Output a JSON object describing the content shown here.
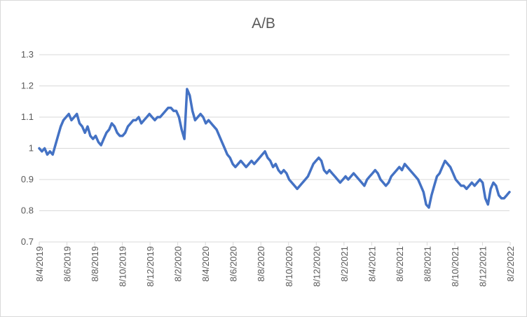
{
  "chart_data": {
    "type": "line",
    "title": "A/B",
    "xlabel": "",
    "ylabel": "",
    "ylim": [
      0.7,
      1.3
    ],
    "yticks": [
      "0.7",
      "0.8",
      "0.9",
      "1",
      "1.1",
      "1.2",
      "1.3"
    ],
    "xticks": [
      "8/4/2019",
      "8/6/2019",
      "8/8/2019",
      "8/10/2019",
      "8/12/2019",
      "8/2/2020",
      "8/4/2020",
      "8/6/2020",
      "8/8/2020",
      "8/10/2020",
      "8/12/2020",
      "8/2/2021",
      "8/4/2021",
      "8/6/2021",
      "8/8/2021",
      "8/10/2021",
      "8/12/2021",
      "8/2/2022"
    ],
    "grid": "horizontal",
    "legend": "none",
    "series_color": "#4472c4",
    "series": [
      {
        "points": [
          [
            0,
            1.0
          ],
          [
            1,
            0.99
          ],
          [
            2,
            1.0
          ],
          [
            3,
            0.98
          ],
          [
            4,
            0.99
          ],
          [
            5,
            0.98
          ],
          [
            6,
            1.01
          ],
          [
            7,
            1.04
          ],
          [
            8,
            1.07
          ],
          [
            9,
            1.09
          ],
          [
            10,
            1.1
          ],
          [
            11,
            1.11
          ],
          [
            12,
            1.09
          ],
          [
            13,
            1.1
          ],
          [
            14,
            1.11
          ],
          [
            15,
            1.08
          ],
          [
            16,
            1.07
          ],
          [
            17,
            1.05
          ],
          [
            18,
            1.07
          ],
          [
            19,
            1.04
          ],
          [
            20,
            1.03
          ],
          [
            21,
            1.04
          ],
          [
            22,
            1.02
          ],
          [
            23,
            1.01
          ],
          [
            24,
            1.03
          ],
          [
            25,
            1.05
          ],
          [
            26,
            1.06
          ],
          [
            27,
            1.08
          ],
          [
            28,
            1.07
          ],
          [
            29,
            1.05
          ],
          [
            30,
            1.04
          ],
          [
            31,
            1.04
          ],
          [
            32,
            1.05
          ],
          [
            33,
            1.07
          ],
          [
            34,
            1.08
          ],
          [
            35,
            1.09
          ],
          [
            36,
            1.09
          ],
          [
            37,
            1.1
          ],
          [
            38,
            1.08
          ],
          [
            39,
            1.09
          ],
          [
            40,
            1.1
          ],
          [
            41,
            1.11
          ],
          [
            42,
            1.1
          ],
          [
            43,
            1.09
          ],
          [
            44,
            1.1
          ],
          [
            45,
            1.1
          ],
          [
            46,
            1.11
          ],
          [
            47,
            1.12
          ],
          [
            48,
            1.13
          ],
          [
            49,
            1.13
          ],
          [
            50,
            1.12
          ],
          [
            51,
            1.12
          ],
          [
            52,
            1.1
          ],
          [
            53,
            1.06
          ],
          [
            54,
            1.03
          ],
          [
            55,
            1.19
          ],
          [
            56,
            1.17
          ],
          [
            57,
            1.12
          ],
          [
            58,
            1.09
          ],
          [
            59,
            1.1
          ],
          [
            60,
            1.11
          ],
          [
            61,
            1.1
          ],
          [
            62,
            1.08
          ],
          [
            63,
            1.09
          ],
          [
            64,
            1.08
          ],
          [
            65,
            1.07
          ],
          [
            66,
            1.06
          ],
          [
            67,
            1.04
          ],
          [
            68,
            1.02
          ],
          [
            69,
            1.0
          ],
          [
            70,
            0.98
          ],
          [
            71,
            0.97
          ],
          [
            72,
            0.95
          ],
          [
            73,
            0.94
          ],
          [
            74,
            0.95
          ],
          [
            75,
            0.96
          ],
          [
            76,
            0.95
          ],
          [
            77,
            0.94
          ],
          [
            78,
            0.95
          ],
          [
            79,
            0.96
          ],
          [
            80,
            0.95
          ],
          [
            81,
            0.96
          ],
          [
            82,
            0.97
          ],
          [
            83,
            0.98
          ],
          [
            84,
            0.99
          ],
          [
            85,
            0.97
          ],
          [
            86,
            0.96
          ],
          [
            87,
            0.94
          ],
          [
            88,
            0.95
          ],
          [
            89,
            0.93
          ],
          [
            90,
            0.92
          ],
          [
            91,
            0.93
          ],
          [
            92,
            0.92
          ],
          [
            93,
            0.9
          ],
          [
            94,
            0.89
          ],
          [
            95,
            0.88
          ],
          [
            96,
            0.87
          ],
          [
            97,
            0.88
          ],
          [
            98,
            0.89
          ],
          [
            99,
            0.9
          ],
          [
            100,
            0.91
          ],
          [
            101,
            0.93
          ],
          [
            102,
            0.95
          ],
          [
            103,
            0.96
          ],
          [
            104,
            0.97
          ],
          [
            105,
            0.96
          ],
          [
            106,
            0.93
          ],
          [
            107,
            0.92
          ],
          [
            108,
            0.93
          ],
          [
            109,
            0.92
          ],
          [
            110,
            0.91
          ],
          [
            111,
            0.9
          ],
          [
            112,
            0.89
          ],
          [
            113,
            0.9
          ],
          [
            114,
            0.91
          ],
          [
            115,
            0.9
          ],
          [
            116,
            0.91
          ],
          [
            117,
            0.92
          ],
          [
            118,
            0.91
          ],
          [
            119,
            0.9
          ],
          [
            120,
            0.89
          ],
          [
            121,
            0.88
          ],
          [
            122,
            0.9
          ],
          [
            123,
            0.91
          ],
          [
            124,
            0.92
          ],
          [
            125,
            0.93
          ],
          [
            126,
            0.92
          ],
          [
            127,
            0.9
          ],
          [
            128,
            0.89
          ],
          [
            129,
            0.88
          ],
          [
            130,
            0.89
          ],
          [
            131,
            0.91
          ],
          [
            132,
            0.92
          ],
          [
            133,
            0.93
          ],
          [
            134,
            0.94
          ],
          [
            135,
            0.93
          ],
          [
            136,
            0.95
          ],
          [
            137,
            0.94
          ],
          [
            138,
            0.93
          ],
          [
            139,
            0.92
          ],
          [
            140,
            0.91
          ],
          [
            141,
            0.9
          ],
          [
            142,
            0.88
          ],
          [
            143,
            0.86
          ],
          [
            144,
            0.82
          ],
          [
            145,
            0.81
          ],
          [
            146,
            0.85
          ],
          [
            147,
            0.88
          ],
          [
            148,
            0.91
          ],
          [
            149,
            0.92
          ],
          [
            150,
            0.94
          ],
          [
            151,
            0.96
          ],
          [
            152,
            0.95
          ],
          [
            153,
            0.94
          ],
          [
            154,
            0.92
          ],
          [
            155,
            0.9
          ],
          [
            156,
            0.89
          ],
          [
            157,
            0.88
          ],
          [
            158,
            0.88
          ],
          [
            159,
            0.87
          ],
          [
            160,
            0.88
          ],
          [
            161,
            0.89
          ],
          [
            162,
            0.88
          ],
          [
            163,
            0.89
          ],
          [
            164,
            0.9
          ],
          [
            165,
            0.89
          ],
          [
            166,
            0.84
          ],
          [
            167,
            0.82
          ],
          [
            168,
            0.87
          ],
          [
            169,
            0.89
          ],
          [
            170,
            0.88
          ],
          [
            171,
            0.85
          ],
          [
            172,
            0.84
          ],
          [
            173,
            0.84
          ],
          [
            174,
            0.85
          ],
          [
            175,
            0.86
          ]
        ]
      }
    ]
  }
}
